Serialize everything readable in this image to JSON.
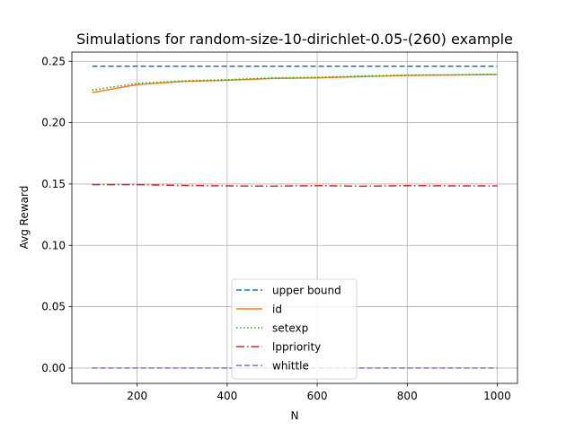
{
  "chart_data": {
    "type": "line",
    "title": "Simulations for random-size-10-dirichlet-0.05-(260) example",
    "xlabel": "N",
    "ylabel": "Avg Reward",
    "xlim": [
      55,
      1045
    ],
    "ylim": [
      -0.0125,
      0.2575
    ],
    "xticks": [
      200,
      400,
      600,
      800,
      1000
    ],
    "yticks": [
      0.0,
      0.05,
      0.1,
      0.15,
      0.2,
      0.25
    ],
    "xtick_labels": [
      "200",
      "400",
      "600",
      "800",
      "1000"
    ],
    "ytick_labels": [
      "0.00",
      "0.05",
      "0.10",
      "0.15",
      "0.20",
      "0.25"
    ],
    "grid": true,
    "legend_position": "lower center",
    "x": [
      100,
      200,
      300,
      400,
      500,
      600,
      700,
      800,
      900,
      1000
    ],
    "series": [
      {
        "name": "upper bound",
        "color": "#1f77b4",
        "dash": "6,3",
        "values": [
          0.246,
          0.246,
          0.246,
          0.246,
          0.246,
          0.246,
          0.246,
          0.246,
          0.246,
          0.246
        ]
      },
      {
        "name": "id",
        "color": "#ff7f0e",
        "dash": "",
        "values": [
          0.2245,
          0.231,
          0.2335,
          0.2345,
          0.236,
          0.2365,
          0.2375,
          0.2385,
          0.2388,
          0.2392
        ]
      },
      {
        "name": "setexp",
        "color": "#2ca02c",
        "dash": "1.5,2.5",
        "values": [
          0.2265,
          0.232,
          0.234,
          0.235,
          0.2365,
          0.237,
          0.238,
          0.2388,
          0.239,
          0.2395
        ]
      },
      {
        "name": "lppriority",
        "color": "#d62728",
        "dash": "9,3,1.5,3",
        "values": [
          0.1495,
          0.1495,
          0.1488,
          0.1485,
          0.1482,
          0.1487,
          0.1482,
          0.1487,
          0.1485,
          0.1485
        ]
      },
      {
        "name": "whittle",
        "color": "#9467bd",
        "dash": "6,3",
        "values": [
          0.0,
          0.0,
          0.0,
          0.0,
          0.0,
          0.0,
          0.0,
          0.0,
          0.0,
          0.0
        ]
      }
    ]
  }
}
